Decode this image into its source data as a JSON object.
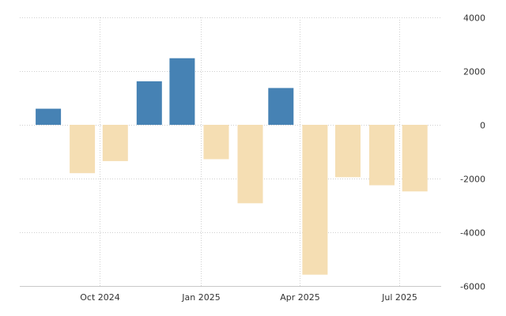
{
  "chart_data": {
    "type": "bar",
    "title": "",
    "xlabel": "",
    "ylabel": "",
    "ylim": [
      -6000,
      4000
    ],
    "yticks": [
      4000,
      2000,
      0,
      -2000,
      -4000,
      -6000
    ],
    "x_tick_labels": [
      {
        "label": "Oct 2024",
        "date": "2024-10-01"
      },
      {
        "label": "Jan 2025",
        "date": "2025-01-01"
      },
      {
        "label": "Apr 2025",
        "date": "2025-04-01"
      },
      {
        "label": "Jul 2025",
        "date": "2025-07-01"
      }
    ],
    "x": [
      "2024-08",
      "2024-09",
      "2024-10",
      "2024-11",
      "2024-12",
      "2025-01",
      "2025-02",
      "2025-03",
      "2025-04",
      "2025-05",
      "2025-06",
      "2025-07"
    ],
    "values": [
      600,
      -1800,
      -1350,
      1620,
      2480,
      -1280,
      -2920,
      1370,
      -5580,
      -1950,
      -2250,
      -2480
    ],
    "grid": true,
    "colors": {
      "positive": "#4682b4",
      "negative": "#f5deb3"
    }
  }
}
